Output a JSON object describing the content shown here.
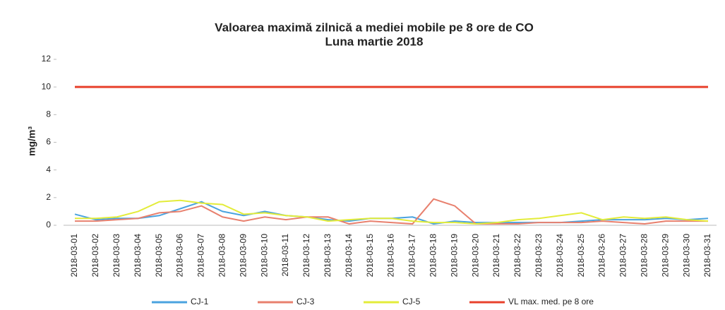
{
  "chart_data": {
    "type": "line",
    "title": "Valoarea maximă zilnică a mediei mobile pe 8 ore de CO",
    "subtitle": "Luna martie 2018",
    "y_label": "mg/m³",
    "categories": [
      "2018-03-01",
      "2018-03-02",
      "2018-03-03",
      "2018-03-04",
      "2018-03-05",
      "2018-03-06",
      "2018-03-07",
      "2018-03-08",
      "2018-03-09",
      "2018-03-10",
      "2018-03-11",
      "2018-03-12",
      "2018-03-13",
      "2018-03-14",
      "2018-03-15",
      "2018-03-16",
      "2018-03-17",
      "2018-03-18",
      "2018-03-19",
      "2018-03-20",
      "2018-03-21",
      "2018-03-22",
      "2018-03-23",
      "2018-03-24",
      "2018-03-25",
      "2018-03-26",
      "2018-03-27",
      "2018-03-28",
      "2018-03-29",
      "2018-03-30",
      "2018-03-31"
    ],
    "series": [
      {
        "name": "CJ-1",
        "color": "#4aa3df",
        "values": [
          0.8,
          0.4,
          0.5,
          0.5,
          0.7,
          1.2,
          1.7,
          1.0,
          0.7,
          1.0,
          0.7,
          0.6,
          0.4,
          0.3,
          0.5,
          0.5,
          0.6,
          0.1,
          0.3,
          0.2,
          0.2,
          0.2,
          0.2,
          0.2,
          0.3,
          0.4,
          0.4,
          0.4,
          0.5,
          0.4,
          0.5
        ]
      },
      {
        "name": "CJ-3",
        "color": "#e8806e",
        "values": [
          0.3,
          0.3,
          0.4,
          0.5,
          0.9,
          1.0,
          1.4,
          0.6,
          0.3,
          0.6,
          0.4,
          0.6,
          0.6,
          0.1,
          0.3,
          0.2,
          0.1,
          1.9,
          1.4,
          0.1,
          0.1,
          0.1,
          0.2,
          0.2,
          0.2,
          0.3,
          0.2,
          0.1,
          0.3,
          0.3,
          0.3
        ]
      },
      {
        "name": "CJ-5",
        "color": "#e3ec3a",
        "values": [
          0.5,
          0.5,
          0.6,
          1.0,
          1.7,
          1.8,
          1.6,
          1.5,
          0.8,
          0.9,
          0.7,
          0.6,
          0.3,
          0.4,
          0.5,
          0.5,
          0.3,
          0.2,
          0.2,
          0.1,
          0.2,
          0.4,
          0.5,
          0.7,
          0.9,
          0.4,
          0.6,
          0.5,
          0.6,
          0.4,
          0.3
        ]
      },
      {
        "name": "VL max. med. pe 8 ore",
        "color": "#e8412c",
        "values": [
          10,
          10,
          10,
          10,
          10,
          10,
          10,
          10,
          10,
          10,
          10,
          10,
          10,
          10,
          10,
          10,
          10,
          10,
          10,
          10,
          10,
          10,
          10,
          10,
          10,
          10,
          10,
          10,
          10,
          10,
          10
        ]
      }
    ],
    "ylim": [
      0,
      12
    ],
    "yticks": [
      0,
      2,
      4,
      6,
      8,
      10,
      12
    ],
    "legend": "bottom"
  }
}
